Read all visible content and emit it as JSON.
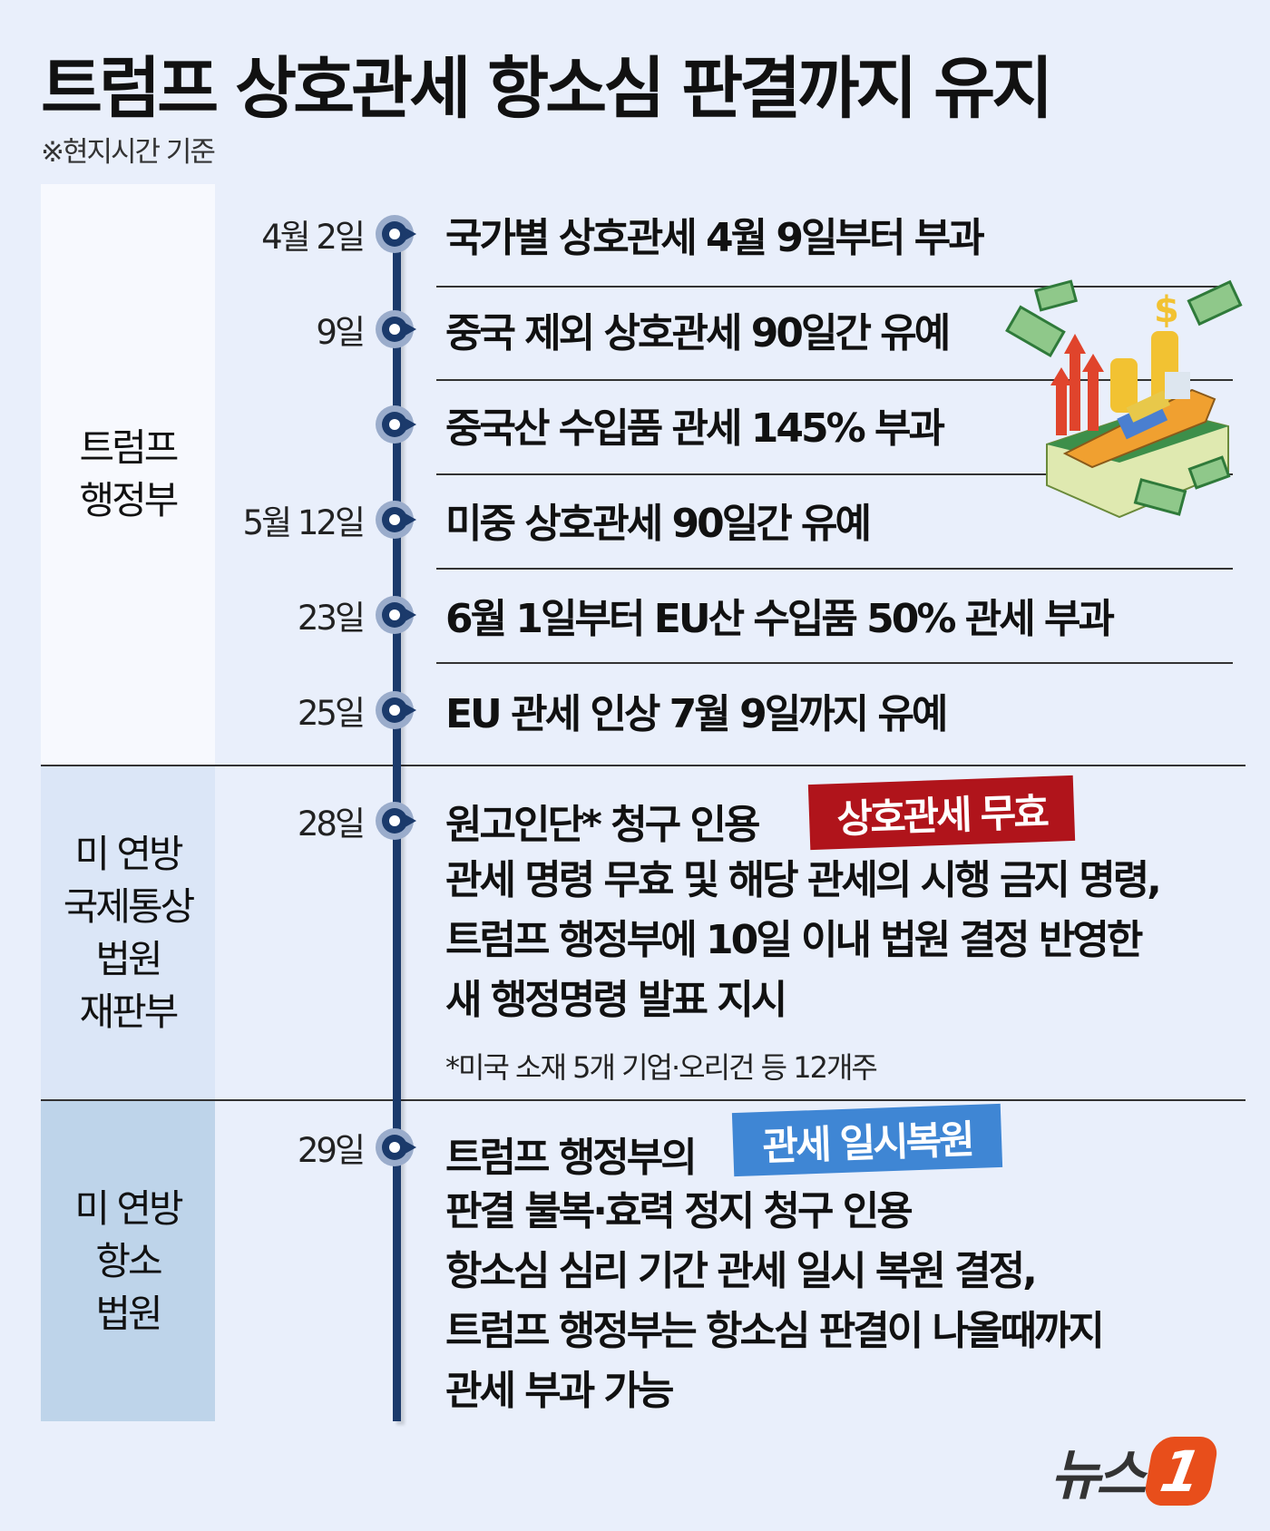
{
  "title": "트럼프 상호관세 항소심 판결까지 유지",
  "subtitle": "※현지시간 기준",
  "sections": [
    {
      "label": "트럼프\n행정부",
      "color": "#f7f9fe"
    },
    {
      "label": "미 연방\n국제통상\n법원\n재판부",
      "color": "#dbe6f7"
    },
    {
      "label": "미 연방\n항소\n법원",
      "color": "#bed4ea"
    }
  ],
  "events": [
    {
      "date": "4월 2일",
      "text": "국가별 상호관세 4월 9일부터 부과"
    },
    {
      "date": "9일",
      "text": "중국 제외 상호관세 90일간 유예"
    },
    {
      "date": "",
      "text": "중국산 수입품 관세 145% 부과"
    },
    {
      "date": "5월 12일",
      "text": "미중 상호관세 90일간 유예"
    },
    {
      "date": "23일",
      "text": "6월 1일부터 EU산 수입품 50% 관세 부과"
    },
    {
      "date": "25일",
      "text": "EU 관세 인상 7월 9일까지 유예"
    }
  ],
  "court": {
    "date": "28일",
    "headline": "원고인단* 청구 인용",
    "badge": "상호관세 무효",
    "badge_color": "#b0141b",
    "lines": [
      "관세 명령 무효 및 해당 관세의 시행 금지 명령,",
      "트럼프 행정부에 10일 이내 법원 결정 반영한",
      "새 행정명령 발표 지시"
    ],
    "note": "*미국 소재 5개 기업·오리건 등 12개주"
  },
  "appeal": {
    "date": "29일",
    "headline": "트럼프 행정부의",
    "badge": "관세 일시복원",
    "badge_color": "#3f86d4",
    "lines": [
      "판결 불복·효력 정지 청구 인용",
      "항소심 심리 기간 관세 일시 복원 결정,",
      "트럼프 행정부는 항소심 판결이 나올때까지",
      "관세 부과 가능"
    ]
  },
  "logo": {
    "text": "뉴스",
    "mark": "1",
    "accent": "#e84e1b"
  },
  "colors": {
    "spine": "#1b3a6b",
    "background": "#e9effb"
  }
}
